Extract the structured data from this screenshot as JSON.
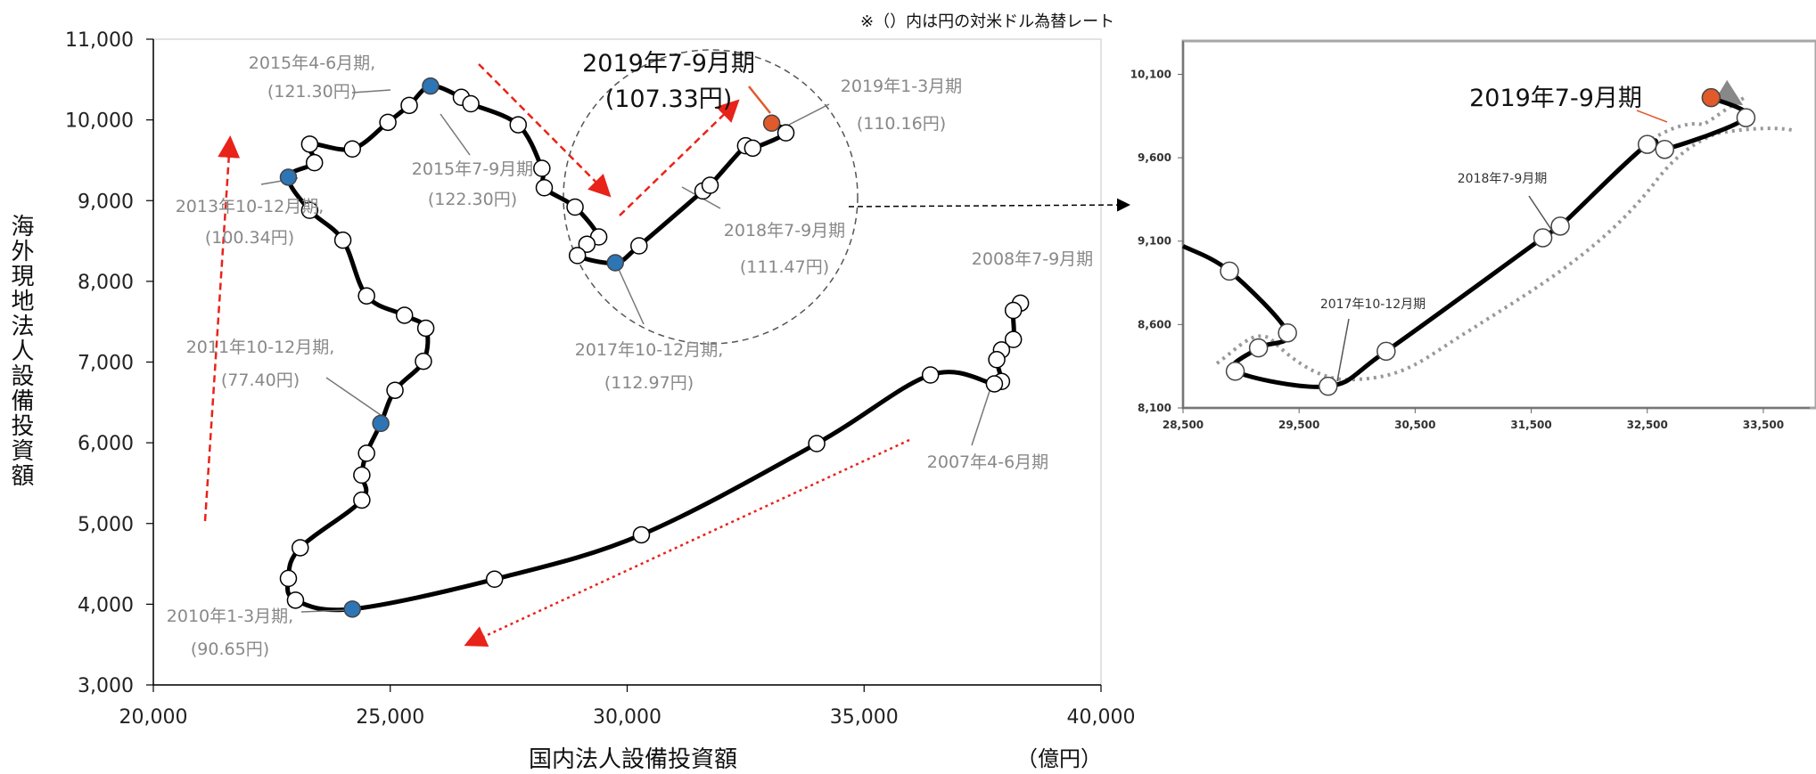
{
  "note": "※（）内は円の対米ドル為替レート",
  "unit_label": "（億円）",
  "colors": {
    "highlight_blue": "#2e75b6",
    "highlight_orange": "#e05a2b",
    "arrow_red": "#e8231a",
    "path": "#000000"
  },
  "chart_data": [
    {
      "type": "scatter",
      "role": "main",
      "xlabel": "国内法人設備投資額",
      "ylabel": "海外現地法人設備投資額",
      "xlim": [
        20000,
        40000
      ],
      "ylim": [
        3000,
        11000
      ],
      "x_ticks": [
        "20,000",
        "25,000",
        "30,000",
        "35,000",
        "40,000"
      ],
      "y_ticks": [
        "3,000",
        "4,000",
        "5,000",
        "6,000",
        "7,000",
        "8,000",
        "9,000",
        "10,000",
        "11,000"
      ],
      "grid": false,
      "points": [
        {
          "x": 38300,
          "y": 7730
        },
        {
          "x": 38150,
          "y": 7640
        },
        {
          "x": 38150,
          "y": 7280
        },
        {
          "x": 37900,
          "y": 7150
        },
        {
          "x": 37800,
          "y": 7030
        },
        {
          "x": 37900,
          "y": 6760
        },
        {
          "x": 37750,
          "y": 6730
        },
        {
          "x": 36400,
          "y": 6840
        },
        {
          "x": 34000,
          "y": 5990
        },
        {
          "x": 30300,
          "y": 4860
        },
        {
          "x": 27200,
          "y": 4310
        },
        {
          "x": 24200,
          "y": 3940,
          "h": "blue"
        },
        {
          "x": 23000,
          "y": 4050
        },
        {
          "x": 22850,
          "y": 4320
        },
        {
          "x": 23100,
          "y": 4700
        },
        {
          "x": 24400,
          "y": 5290
        },
        {
          "x": 24400,
          "y": 5600
        },
        {
          "x": 24500,
          "y": 5870
        },
        {
          "x": 24800,
          "y": 6240,
          "h": "blue"
        },
        {
          "x": 25100,
          "y": 6650
        },
        {
          "x": 25700,
          "y": 7010
        },
        {
          "x": 25750,
          "y": 7420
        },
        {
          "x": 25300,
          "y": 7580
        },
        {
          "x": 24500,
          "y": 7820
        },
        {
          "x": 24000,
          "y": 8510
        },
        {
          "x": 23300,
          "y": 8880
        },
        {
          "x": 22850,
          "y": 9290,
          "h": "blue"
        },
        {
          "x": 23400,
          "y": 9470
        },
        {
          "x": 23300,
          "y": 9700
        },
        {
          "x": 24200,
          "y": 9640
        },
        {
          "x": 24950,
          "y": 9970
        },
        {
          "x": 25400,
          "y": 10180
        },
        {
          "x": 25850,
          "y": 10420,
          "h": "blue"
        },
        {
          "x": 26500,
          "y": 10280
        },
        {
          "x": 26700,
          "y": 10200
        },
        {
          "x": 27700,
          "y": 9940
        },
        {
          "x": 28200,
          "y": 9400
        },
        {
          "x": 28250,
          "y": 9160
        },
        {
          "x": 28900,
          "y": 8920
        },
        {
          "x": 29400,
          "y": 8550
        },
        {
          "x": 29150,
          "y": 8460
        },
        {
          "x": 28950,
          "y": 8320
        },
        {
          "x": 29750,
          "y": 8230,
          "h": "blue"
        },
        {
          "x": 30250,
          "y": 8440
        },
        {
          "x": 31600,
          "y": 9120
        },
        {
          "x": 31750,
          "y": 9190
        },
        {
          "x": 32500,
          "y": 9680
        },
        {
          "x": 32650,
          "y": 9650
        },
        {
          "x": 33350,
          "y": 9840
        },
        {
          "x": 33050,
          "y": 9960,
          "h": "orange"
        }
      ],
      "annotations": [
        {
          "id": "a2015q2",
          "lines": [
            "2015年4-6月期,",
            "(121.30円)"
          ]
        },
        {
          "id": "a2015q3",
          "lines": [
            "2015年7-9月期",
            "(122.30円)"
          ]
        },
        {
          "id": "a2013q4",
          "lines": [
            "2013年10-12月期,",
            "(100.34円)"
          ]
        },
        {
          "id": "a2011q4",
          "lines": [
            "2011年10-12月期,",
            "(77.40円)"
          ]
        },
        {
          "id": "a2010q1",
          "lines": [
            "2010年1-3月期,",
            "(90.65円)"
          ]
        },
        {
          "id": "a2019q3",
          "lines": [
            "2019年7-9月期",
            "(107.33円)"
          ]
        },
        {
          "id": "a2019q1",
          "lines": [
            "2019年1-3月期",
            "(110.16円)"
          ]
        },
        {
          "id": "a2018q3",
          "lines": [
            "2018年7-9月期",
            "(111.47円)"
          ]
        },
        {
          "id": "a2017q4",
          "lines": [
            "2017年10-12月期,",
            "(112.97円)"
          ]
        },
        {
          "id": "a2008q3",
          "lines": [
            "2008年7-9月期"
          ]
        },
        {
          "id": "a2007q2",
          "lines": [
            "2007年4-6月期"
          ]
        }
      ]
    },
    {
      "type": "scatter",
      "role": "inset",
      "xlim": [
        28500,
        33900
      ],
      "ylim": [
        8100,
        10300
      ],
      "x_ticks": [
        "28,500",
        "29,500",
        "30,500",
        "31,500",
        "32,500",
        "33,500"
      ],
      "y_ticks": [
        "8,100",
        "8,600",
        "9,100",
        "9,600",
        "10,100"
      ],
      "grid": false,
      "points": [
        {
          "x": 28900,
          "y": 8920
        },
        {
          "x": 29400,
          "y": 8550
        },
        {
          "x": 29150,
          "y": 8460
        },
        {
          "x": 28950,
          "y": 8320
        },
        {
          "x": 29750,
          "y": 8230
        },
        {
          "x": 30250,
          "y": 8440
        },
        {
          "x": 31600,
          "y": 9120
        },
        {
          "x": 31750,
          "y": 9190
        },
        {
          "x": 32500,
          "y": 9680
        },
        {
          "x": 32650,
          "y": 9650
        },
        {
          "x": 33350,
          "y": 9840
        },
        {
          "x": 33050,
          "y": 9960,
          "h": "orange"
        }
      ],
      "annotations": [
        {
          "id": "i2019q3",
          "lines": [
            "2019年7-9月期"
          ]
        },
        {
          "id": "i2018q3",
          "lines": [
            "2018年7-9月期"
          ]
        },
        {
          "id": "i2017q4",
          "lines": [
            "2017年10-12月期"
          ]
        }
      ]
    }
  ]
}
